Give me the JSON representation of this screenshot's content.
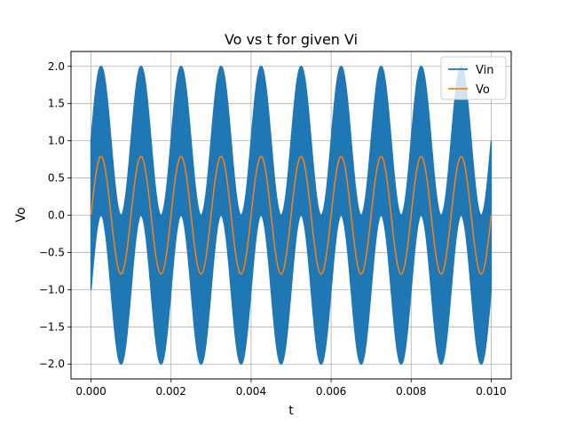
{
  "chart_data": {
    "type": "line",
    "title": "Vo vs t for given Vi",
    "xlabel": "t",
    "ylabel": "Vo",
    "xlim": [
      -0.0005,
      0.0105
    ],
    "ylim": [
      -2.2,
      2.2
    ],
    "grid": true,
    "legend_position": "top-right",
    "x_ticks": [
      0.0,
      0.002,
      0.004,
      0.006,
      0.008,
      0.01
    ],
    "x_tick_labels": [
      "0.000",
      "0.002",
      "0.004",
      "0.006",
      "0.008",
      "0.010"
    ],
    "y_ticks": [
      -2.0,
      -1.5,
      -1.0,
      -0.5,
      0.0,
      0.5,
      1.0,
      1.5,
      2.0
    ],
    "y_tick_labels": [
      "−2.0",
      "−1.5",
      "−1.0",
      "−0.5",
      "0.0",
      "0.5",
      "1.0",
      "1.5",
      "2.0"
    ],
    "series": [
      {
        "name": "Vin",
        "color": "#1f77b4",
        "description": "sin(2π·1000·t) + cos(2π·fast·t), band-filled envelope",
        "t_start": 0.0,
        "t_end": 0.01,
        "low_freq_hz": 1000,
        "low_amplitude": 1.0,
        "high_amplitude": 1.0
      },
      {
        "name": "Vo",
        "color": "#ff7f0e",
        "t_start": 0.0,
        "t_end": 0.01,
        "freq_hz": 1000,
        "amplitude": 0.79,
        "phase_shift_periods": -0.0
      }
    ]
  }
}
